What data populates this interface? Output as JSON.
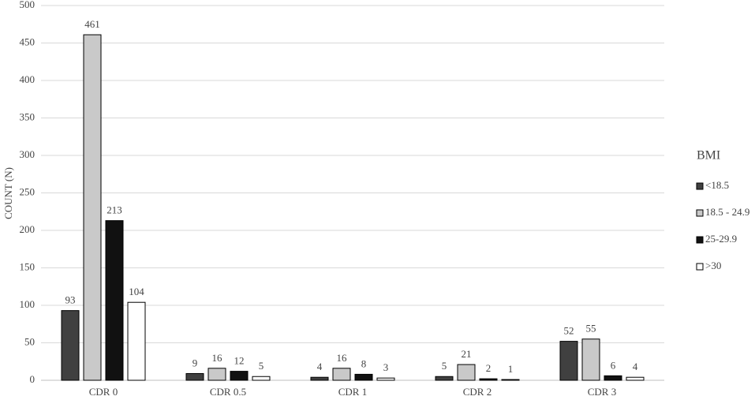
{
  "chart_data": {
    "type": "bar",
    "y_label": "COUNT (N)",
    "legend_title": "BMI",
    "categories": [
      "CDR 0",
      "CDR 0.5",
      "CDR 1",
      "CDR 2",
      "CDR 3"
    ],
    "series": [
      {
        "name": "<18.5",
        "color": "#404040",
        "values": [
          93,
          9,
          4,
          5,
          52
        ]
      },
      {
        "name": "18.5 - 24.9",
        "color": "#c9c9c9",
        "values": [
          461,
          16,
          16,
          21,
          55
        ]
      },
      {
        "name": "25-29.9",
        "color": "#111111",
        "values": [
          213,
          12,
          8,
          2,
          6
        ]
      },
      {
        "name": ">30",
        "color": "#ffffff",
        "values": [
          104,
          5,
          3,
          1,
          4
        ]
      }
    ],
    "ylim": [
      0,
      500
    ],
    "yticks": [
      0,
      50,
      100,
      150,
      200,
      250,
      300,
      350,
      400,
      450,
      500
    ],
    "grid": true,
    "legend": "right"
  }
}
